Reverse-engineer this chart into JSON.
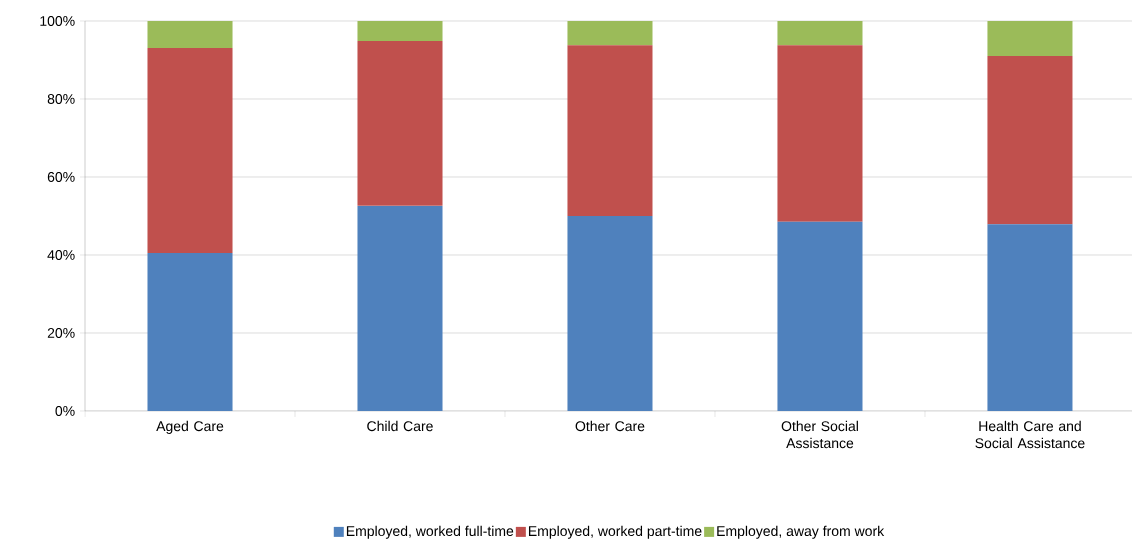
{
  "chart_data": {
    "type": "bar",
    "stacked": true,
    "categories": [
      "Aged Care",
      "Child Care",
      "Other Care",
      "Other Social Assistance",
      "Health Care and Social Assistance"
    ],
    "series": [
      {
        "name": "Employed, worked full-time",
        "color": "#4f81bd",
        "values": [
          40.5,
          52.6,
          50.0,
          48.5,
          47.9
        ]
      },
      {
        "name": "Employed, worked part-time",
        "color": "#c0504d",
        "values": [
          52.6,
          42.3,
          43.8,
          45.3,
          43.1
        ]
      },
      {
        "name": "Employed, away from work",
        "color": "#9bbb59",
        "values": [
          6.9,
          5.1,
          6.2,
          6.2,
          9.0
        ]
      }
    ],
    "ylim": [
      0,
      100
    ],
    "yticks": [
      {
        "value": 0,
        "label": "0%"
      },
      {
        "value": 20,
        "label": "20%"
      },
      {
        "value": 40,
        "label": "40%"
      },
      {
        "value": 60,
        "label": "60%"
      },
      {
        "value": 80,
        "label": "80%"
      },
      {
        "value": 100,
        "label": "100%"
      }
    ],
    "grid": "y",
    "legend": "bottom"
  }
}
